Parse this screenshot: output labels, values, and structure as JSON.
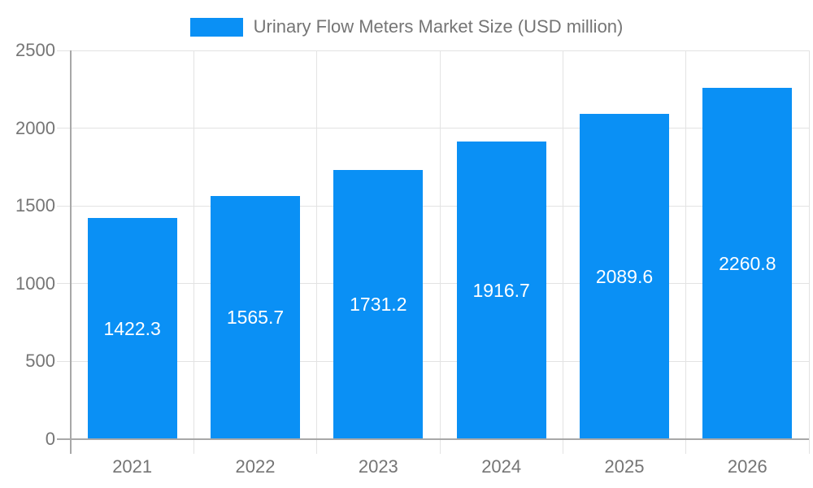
{
  "legend": {
    "label": "Urinary Flow Meters Market Size (USD million)"
  },
  "chart_data": {
    "type": "bar",
    "title": "Urinary Flow Meters Market Size (USD million)",
    "series_name": "Urinary Flow Meters Market Size (USD million)",
    "categories": [
      "2021",
      "2022",
      "2023",
      "2024",
      "2025",
      "2026"
    ],
    "values": [
      1422.3,
      1565.7,
      1731.2,
      1916.7,
      2089.6,
      2260.8
    ],
    "xlabel": "",
    "ylabel": "",
    "ylim": [
      0,
      2500
    ],
    "yticks": [
      0,
      500,
      1000,
      1500,
      2000,
      2500
    ],
    "grid": true,
    "legend_position": "top-center",
    "bar_color": "#0a90f5",
    "bar_label_color": "#ffffff",
    "axis_text_color": "#757575",
    "gridline_color": "#e3e3e3",
    "axis_line_color": "#a8a8a8",
    "background_color": "#ffffff"
  }
}
